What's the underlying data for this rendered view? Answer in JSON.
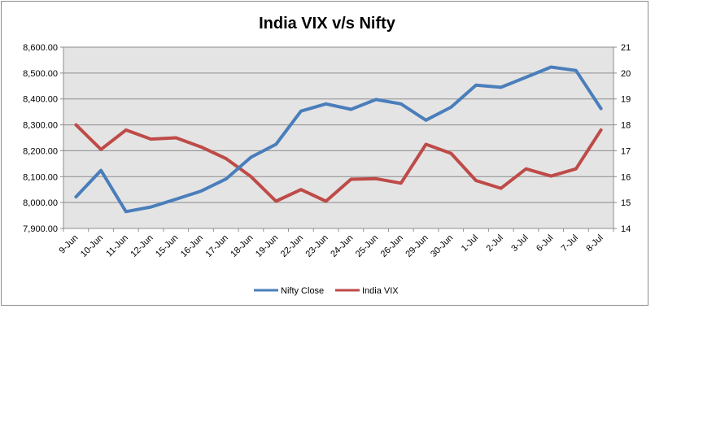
{
  "chart_data": {
    "type": "line",
    "title": "India VIX v/s Nifty",
    "categories": [
      "9-Jun",
      "10-Jun",
      "11-Jun",
      "12-Jun",
      "15-Jun",
      "16-Jun",
      "17-Jun",
      "18-Jun",
      "19-Jun",
      "22-Jun",
      "23-Jun",
      "24-Jun",
      "25-Jun",
      "26-Jun",
      "29-Jun",
      "30-Jun",
      "1-Jul",
      "2-Jul",
      "3-Jul",
      "6-Jul",
      "7-Jul",
      "8-Jul"
    ],
    "series": [
      {
        "name": "Nifty Close",
        "axis": "left",
        "color": "#4a7ebb",
        "values": [
          8022,
          8124,
          7965,
          7983,
          8013,
          8044,
          8091,
          8175,
          8225,
          8353,
          8381,
          8360,
          8398,
          8381,
          8318,
          8368,
          8453,
          8445,
          8484,
          8523,
          8510,
          8363
        ]
      },
      {
        "name": "India VIX",
        "axis": "right",
        "color": "#be4b48",
        "values": [
          18.0,
          17.05,
          17.8,
          17.45,
          17.5,
          17.15,
          16.7,
          16.0,
          15.05,
          15.5,
          15.05,
          15.9,
          15.92,
          15.75,
          17.25,
          16.9,
          15.85,
          15.55,
          16.3,
          16.02,
          16.3,
          17.8
        ]
      }
    ],
    "y_left": {
      "min": 7900,
      "max": 8600,
      "ticks": [
        "7,900.00",
        "8,000.00",
        "8,100.00",
        "8,200.00",
        "8,300.00",
        "8,400.00",
        "8,500.00",
        "8,600.00"
      ]
    },
    "y_right": {
      "min": 14,
      "max": 21,
      "ticks": [
        "14",
        "15",
        "16",
        "17",
        "18",
        "19",
        "20",
        "21"
      ]
    },
    "grid": true,
    "legend": "bottom"
  }
}
